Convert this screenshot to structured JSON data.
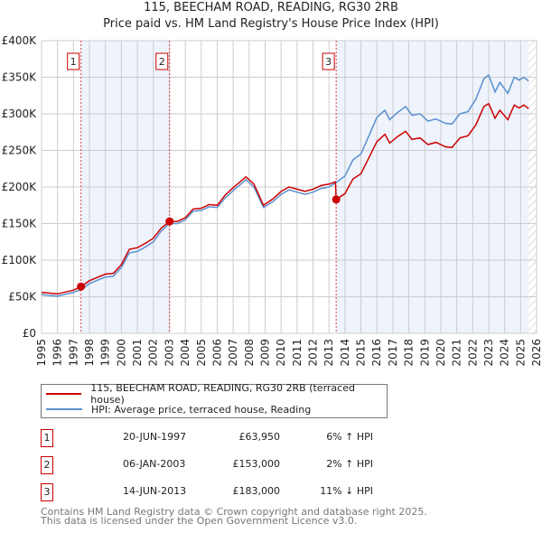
{
  "chart_data": {
    "type": "line",
    "title": "115, BEECHAM ROAD, READING, RG30 2RB",
    "subtitle": "Price paid vs. HM Land Registry's House Price Index (HPI)",
    "xlim": [
      1995,
      2026
    ],
    "ylim": [
      0,
      400000
    ],
    "y_ticks": [
      {
        "v": 0,
        "label": "£0"
      },
      {
        "v": 50000,
        "label": "£50K"
      },
      {
        "v": 100000,
        "label": "£100K"
      },
      {
        "v": 150000,
        "label": "£150K"
      },
      {
        "v": 200000,
        "label": "£200K"
      },
      {
        "v": 250000,
        "label": "£250K"
      },
      {
        "v": 300000,
        "label": "£300K"
      },
      {
        "v": 350000,
        "label": "£350K"
      },
      {
        "v": 400000,
        "label": "£400K"
      }
    ],
    "x_ticks": [
      "1995",
      "1996",
      "1997",
      "1998",
      "1999",
      "2000",
      "2001",
      "2002",
      "2003",
      "2004",
      "2005",
      "2006",
      "2007",
      "2008",
      "2009",
      "2010",
      "2011",
      "2012",
      "2013",
      "2014",
      "2015",
      "2016",
      "2017",
      "2018",
      "2019",
      "2020",
      "2021",
      "2022",
      "2023",
      "2024",
      "2025",
      "2026"
    ],
    "grid": true,
    "forecast_hatch_from": 2025.5,
    "series": [
      {
        "name": "115, BEECHAM ROAD, READING, RG30 2RB (terraced house)",
        "color": "#cc0000",
        "x": [
          1995,
          1996,
          1997,
          1997.47,
          1998,
          1999,
          1999.5,
          2000,
          2000.5,
          2001,
          2001.5,
          2002,
          2002.5,
          2003.02,
          2003.5,
          2004,
          2004.5,
          2005,
          2005.5,
          2006,
          2006.5,
          2007,
          2007.8,
          2008.3,
          2008.9,
          2009.5,
          2010,
          2010.5,
          2011,
          2011.5,
          2012,
          2012.5,
          2013,
          2013.4,
          2013.45,
          2014,
          2014.5,
          2015,
          2015.5,
          2016,
          2016.5,
          2016.8,
          2017.3,
          2017.8,
          2018.2,
          2018.7,
          2019.2,
          2019.7,
          2020.3,
          2020.7,
          2021.2,
          2021.7,
          2022.2,
          2022.7,
          2023,
          2023.4,
          2023.7,
          2024.2,
          2024.6,
          2024.9,
          2025.2,
          2025.5
        ],
        "y": [
          56000,
          54000,
          59000,
          63950,
          72000,
          81000,
          82000,
          94000,
          115000,
          117000,
          123000,
          130000,
          144000,
          153000,
          153000,
          158000,
          170000,
          171000,
          176000,
          175000,
          189000,
          199000,
          214000,
          204000,
          175000,
          184000,
          194000,
          200000,
          197000,
          194000,
          197000,
          202000,
          204000,
          207000,
          183000,
          191000,
          211000,
          218000,
          240000,
          262000,
          272000,
          260000,
          269000,
          276000,
          265000,
          267000,
          258000,
          261000,
          255000,
          254000,
          267000,
          270000,
          285000,
          310000,
          314000,
          294000,
          305000,
          292000,
          312000,
          308000,
          312000,
          307000
        ]
      },
      {
        "name": "HPI: Average price, terraced house, Reading",
        "color": "#5b8fd0",
        "x": [
          1995,
          1996,
          1997,
          1997.5,
          1998,
          1999,
          1999.5,
          2000,
          2000.5,
          2001,
          2001.5,
          2002,
          2002.5,
          2003,
          2003.5,
          2004,
          2004.5,
          2005,
          2005.5,
          2006,
          2006.5,
          2007,
          2007.8,
          2008.3,
          2008.9,
          2009.5,
          2010,
          2010.5,
          2011,
          2011.5,
          2012,
          2012.5,
          2013,
          2013.5,
          2014,
          2014.5,
          2015,
          2015.5,
          2016,
          2016.5,
          2016.8,
          2017.3,
          2017.8,
          2018.2,
          2018.7,
          2019.2,
          2019.7,
          2020.3,
          2020.7,
          2021.2,
          2021.7,
          2022.2,
          2022.7,
          2023,
          2023.4,
          2023.7,
          2024.2,
          2024.6,
          2024.9,
          2025.2,
          2025.5
        ],
        "y": [
          53000,
          51000,
          56000,
          60000,
          68000,
          77000,
          78000,
          90000,
          110000,
          112000,
          118000,
          125000,
          140000,
          150000,
          150000,
          155000,
          167000,
          168000,
          173000,
          172000,
          185000,
          195000,
          210000,
          200000,
          172000,
          180000,
          190000,
          196000,
          193000,
          190000,
          193000,
          198000,
          200000,
          207000,
          215000,
          237000,
          245000,
          270000,
          295000,
          305000,
          292000,
          302000,
          310000,
          298000,
          300000,
          290000,
          293000,
          287000,
          286000,
          300000,
          303000,
          320000,
          348000,
          353000,
          330000,
          343000,
          328000,
          350000,
          346000,
          350000,
          345000
        ]
      }
    ],
    "sales": [
      {
        "num": "1",
        "x": 1997.47,
        "y": 63950,
        "date": "20-JUN-1997",
        "price": "£63,950",
        "hpi": "6% ↑ HPI"
      },
      {
        "num": "2",
        "x": 2003.02,
        "y": 153000,
        "date": "06-JAN-2003",
        "price": "£153,000",
        "hpi": "2% ↑ HPI"
      },
      {
        "num": "3",
        "x": 2013.45,
        "y": 183000,
        "date": "14-JUN-2013",
        "price": "£183,000",
        "hpi": "11% ↓ HPI"
      }
    ]
  },
  "footer": {
    "line1": "Contains HM Land Registry data © Crown copyright and database right 2025.",
    "line2": "This data is licensed under the Open Government Licence v3.0."
  }
}
